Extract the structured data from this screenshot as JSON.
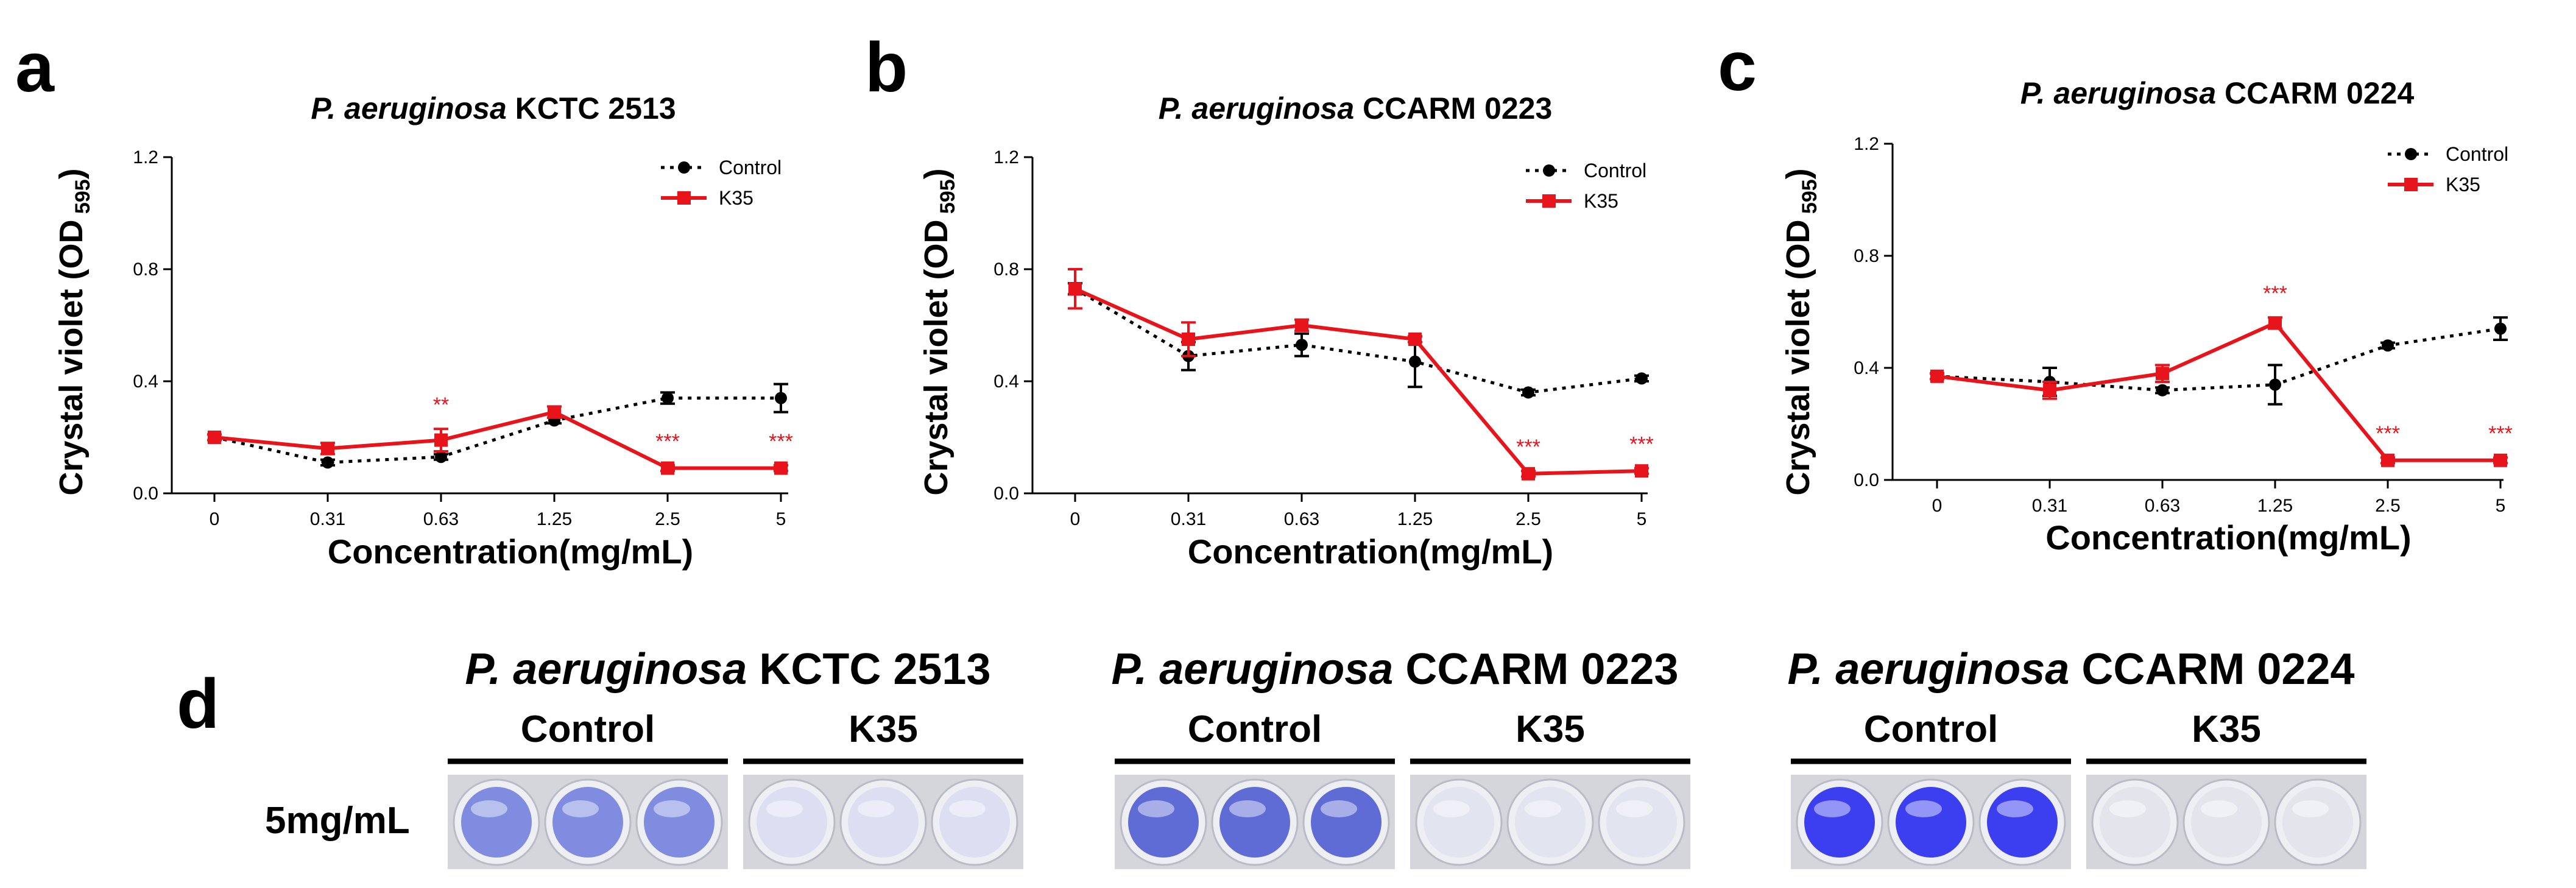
{
  "panel_letters": [
    "a",
    "b",
    "c",
    "d"
  ],
  "x_categories": [
    "0",
    "0.31",
    "0.63",
    "1.25",
    "2.5",
    "5"
  ],
  "y_ticks": [
    "0.0",
    "0.4",
    "0.8",
    "1.2"
  ],
  "chart_data": [
    {
      "type": "line",
      "panel": "a",
      "title_italic": "P. aeruginosa",
      "title_rest": " KCTC 2513",
      "ylabel_main": "Crystal violet (OD",
      "ylabel_sub": "595",
      "ylabel_end": ")",
      "xlabel": "Concentration(mg/mL)",
      "categories": [
        "0",
        "0.31",
        "0.63",
        "1.25",
        "2.5",
        "5"
      ],
      "ylim": [
        0,
        1.2
      ],
      "legend_position": "top-right",
      "series": [
        {
          "name": "Control",
          "color": "#000000",
          "style": "dotted",
          "marker": "circle",
          "values": [
            0.2,
            0.11,
            0.13,
            0.26,
            0.34,
            0.34
          ],
          "errors": [
            0.01,
            0.01,
            0.01,
            0.01,
            0.02,
            0.05
          ]
        },
        {
          "name": "K35",
          "color": "#e8141b",
          "style": "solid",
          "marker": "square",
          "values": [
            0.2,
            0.16,
            0.19,
            0.29,
            0.09,
            0.09
          ],
          "errors": [
            0.01,
            0.02,
            0.04,
            0.02,
            0.01,
            0.01
          ]
        }
      ],
      "annotations": [
        {
          "index": 2,
          "text": "**"
        },
        {
          "index": 4,
          "text": "***"
        },
        {
          "index": 5,
          "text": "***"
        }
      ]
    },
    {
      "type": "line",
      "panel": "b",
      "title_italic": "P. aeruginosa",
      "title_rest": " CCARM 0223",
      "ylabel_main": "Crystal violet (OD",
      "ylabel_sub": "595",
      "ylabel_end": ")",
      "xlabel": "Concentration(mg/mL)",
      "categories": [
        "0",
        "0.31",
        "0.63",
        "1.25",
        "2.5",
        "5"
      ],
      "ylim": [
        0,
        1.2
      ],
      "legend_position": "top-right",
      "series": [
        {
          "name": "Control",
          "color": "#000000",
          "style": "dotted",
          "marker": "circle",
          "values": [
            0.73,
            0.49,
            0.53,
            0.47,
            0.36,
            0.41
          ],
          "errors": [
            0.02,
            0.05,
            0.04,
            0.09,
            0.01,
            0.01
          ]
        },
        {
          "name": "K35",
          "color": "#e8141b",
          "style": "solid",
          "marker": "square",
          "values": [
            0.73,
            0.55,
            0.6,
            0.55,
            0.07,
            0.08
          ],
          "errors": [
            0.07,
            0.06,
            0.02,
            0.01,
            0.01,
            0.01
          ]
        }
      ],
      "annotations": [
        {
          "index": 4,
          "text": "***"
        },
        {
          "index": 5,
          "text": "***"
        }
      ]
    },
    {
      "type": "line",
      "panel": "c",
      "title_italic": "P. aeruginosa",
      "title_rest": " CCARM 0224",
      "ylabel_main": "Crystal violet (OD",
      "ylabel_sub": "595",
      "ylabel_end": ")",
      "xlabel": "Concentration(mg/mL)",
      "categories": [
        "0",
        "0.31",
        "0.63",
        "1.25",
        "2.5",
        "5"
      ],
      "ylim": [
        0,
        1.2
      ],
      "legend_position": "top-right",
      "series": [
        {
          "name": "Control",
          "color": "#000000",
          "style": "dotted",
          "marker": "circle",
          "values": [
            0.37,
            0.35,
            0.32,
            0.34,
            0.48,
            0.54
          ],
          "errors": [
            0.01,
            0.05,
            0.01,
            0.07,
            0.01,
            0.04
          ]
        },
        {
          "name": "K35",
          "color": "#e8141b",
          "style": "solid",
          "marker": "square",
          "values": [
            0.37,
            0.32,
            0.38,
            0.56,
            0.07,
            0.07
          ],
          "errors": [
            0.01,
            0.03,
            0.03,
            0.02,
            0.01,
            0.01
          ]
        }
      ],
      "annotations": [
        {
          "index": 3,
          "text": "***"
        },
        {
          "index": 4,
          "text": "***"
        },
        {
          "index": 5,
          "text": "***"
        }
      ]
    }
  ],
  "photo_panel": {
    "letter": "d",
    "row_label": "5mg/mL",
    "groups": [
      {
        "title_italic": "P. aeruginosa",
        "title_rest": " KCTC 2513",
        "control_label": "Control",
        "treat_label": "K35",
        "control_color": "#7f8ce0",
        "treat_color": "#dcdff2"
      },
      {
        "title_italic": "P. aeruginosa",
        "title_rest": " CCARM 0223",
        "control_label": "Control",
        "treat_label": "K35",
        "control_color": "#5f6cd6",
        "treat_color": "#e2e4f0"
      },
      {
        "title_italic": "P. aeruginosa",
        "title_rest": " CCARM 0224",
        "control_label": "Control",
        "treat_label": "K35",
        "control_color": "#3b3ff0",
        "treat_color": "#e4e5ec"
      }
    ]
  }
}
